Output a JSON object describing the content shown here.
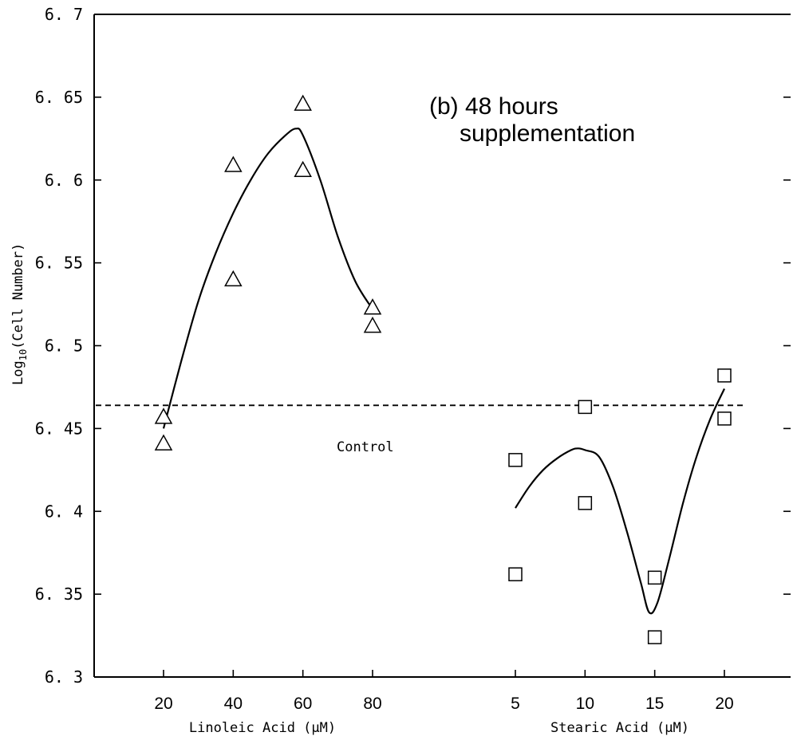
{
  "chart_data": {
    "type": "scatter",
    "annotation_line1": "(b) 48 hours",
    "annotation_line2": "supplementation",
    "ylabel": "Log10(Cell Number)",
    "ylabel_main": "Log",
    "ylabel_sub": "10",
    "ylabel_rest": "(Cell Number)",
    "ylim": [
      6.3,
      6.7
    ],
    "y_ticks": [
      "6.3",
      "6.35",
      "6.4",
      "6.45",
      "6.5",
      "6.55",
      "6.6",
      "6.65",
      "6.7"
    ],
    "y_tick_labels": [
      "6. 3",
      "6. 35",
      "6. 4",
      "6. 45",
      "6. 5",
      "6. 55",
      "6. 6",
      "6. 65",
      "6. 7"
    ],
    "control": {
      "label": "Control",
      "value": 6.464
    },
    "groups": [
      {
        "xlabel": "Linoleic Acid (μM)",
        "x_ticks": [
          20,
          40,
          60,
          80
        ],
        "marker": "triangle",
        "points": [
          {
            "x": 20,
            "y": 6.457
          },
          {
            "x": 20,
            "y": 6.441
          },
          {
            "x": 40,
            "y": 6.609
          },
          {
            "x": 40,
            "y": 6.54
          },
          {
            "x": 60,
            "y": 6.646
          },
          {
            "x": 60,
            "y": 6.606
          },
          {
            "x": 80,
            "y": 6.523
          },
          {
            "x": 80,
            "y": 6.512
          }
        ],
        "fit": [
          {
            "x": 20,
            "y": 6.45
          },
          {
            "x": 25,
            "y": 6.49
          },
          {
            "x": 30,
            "y": 6.527
          },
          {
            "x": 35,
            "y": 6.556
          },
          {
            "x": 40,
            "y": 6.58
          },
          {
            "x": 45,
            "y": 6.6
          },
          {
            "x": 50,
            "y": 6.616
          },
          {
            "x": 55,
            "y": 6.627
          },
          {
            "x": 58,
            "y": 6.631
          },
          {
            "x": 60,
            "y": 6.627
          },
          {
            "x": 65,
            "y": 6.6
          },
          {
            "x": 70,
            "y": 6.566
          },
          {
            "x": 75,
            "y": 6.539
          },
          {
            "x": 80,
            "y": 6.522
          }
        ]
      },
      {
        "xlabel": "Stearic Acid (μM)",
        "x_ticks": [
          5,
          10,
          15,
          20
        ],
        "marker": "square",
        "points": [
          {
            "x": 5,
            "y": 6.431
          },
          {
            "x": 5,
            "y": 6.362
          },
          {
            "x": 10,
            "y": 6.463
          },
          {
            "x": 10,
            "y": 6.405
          },
          {
            "x": 15,
            "y": 6.36
          },
          {
            "x": 15,
            "y": 6.324
          },
          {
            "x": 20,
            "y": 6.482
          },
          {
            "x": 20,
            "y": 6.456
          }
        ],
        "fit": [
          {
            "x": 5,
            "y": 6.402
          },
          {
            "x": 6,
            "y": 6.415
          },
          {
            "x": 7,
            "y": 6.425
          },
          {
            "x": 8,
            "y": 6.432
          },
          {
            "x": 9,
            "y": 6.437
          },
          {
            "x": 9.5,
            "y": 6.438
          },
          {
            "x": 10,
            "y": 6.437
          },
          {
            "x": 11,
            "y": 6.433
          },
          {
            "x": 12,
            "y": 6.415
          },
          {
            "x": 13,
            "y": 6.388
          },
          {
            "x": 14,
            "y": 6.357
          },
          {
            "x": 14.6,
            "y": 6.339
          },
          {
            "x": 15.2,
            "y": 6.345
          },
          {
            "x": 16,
            "y": 6.37
          },
          {
            "x": 17,
            "y": 6.404
          },
          {
            "x": 18,
            "y": 6.433
          },
          {
            "x": 19,
            "y": 6.456
          },
          {
            "x": 20,
            "y": 6.474
          }
        ]
      }
    ]
  }
}
